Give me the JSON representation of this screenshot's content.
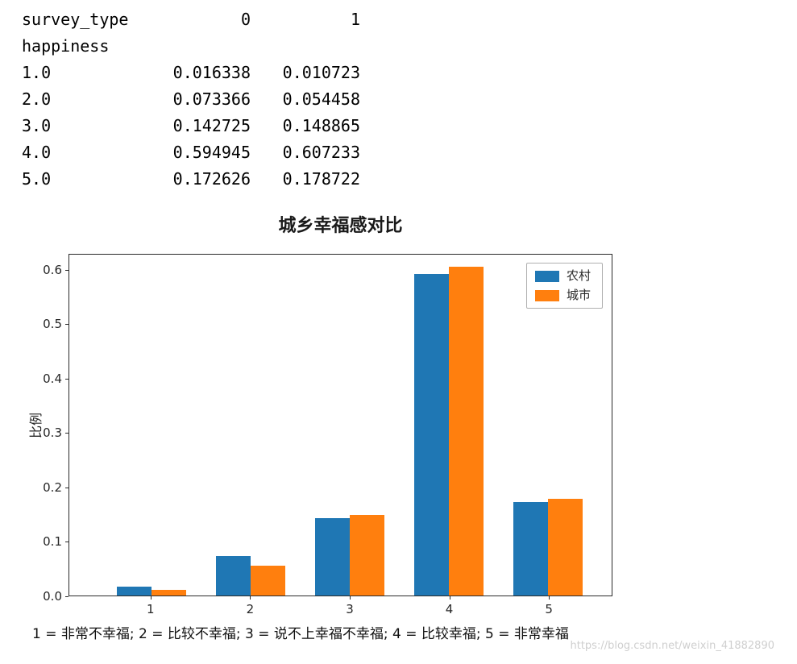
{
  "dataframe": {
    "columns_name": "survey_type",
    "col_headers": [
      "0",
      "1"
    ],
    "index_name": "happiness",
    "rows": [
      [
        "1.0",
        "0.016338",
        "0.010723"
      ],
      [
        "2.0",
        "0.073366",
        "0.054458"
      ],
      [
        "3.0",
        "0.142725",
        "0.148865"
      ],
      [
        "4.0",
        "0.594945",
        "0.607233"
      ],
      [
        "5.0",
        "0.172626",
        "0.178722"
      ]
    ]
  },
  "chart_data": {
    "type": "bar",
    "title": "城乡幸福感对比",
    "ylabel": "比例",
    "xlabel": "",
    "categories": [
      "1",
      "2",
      "3",
      "4",
      "5"
    ],
    "series": [
      {
        "name": "农村",
        "color": "#1f77b4",
        "values": [
          0.016338,
          0.073366,
          0.142725,
          0.594945,
          0.172626
        ]
      },
      {
        "name": "城市",
        "color": "#ff7f0e",
        "values": [
          0.010723,
          0.054458,
          0.148865,
          0.607233,
          0.178722
        ]
      }
    ],
    "ylim": [
      0,
      0.63
    ],
    "ytick_labels": [
      "0.0",
      "0.1",
      "0.2",
      "0.3",
      "0.4",
      "0.5",
      "0.6"
    ],
    "legend_position": "upper right",
    "grid": false
  },
  "caption": "1 = 非常不幸福; 2 = 比较不幸福; 3 = 说不上幸福不幸福; 4 = 比较幸福; 5 = 非常幸福",
  "watermark": "https://blog.csdn.net/weixin_41882890"
}
